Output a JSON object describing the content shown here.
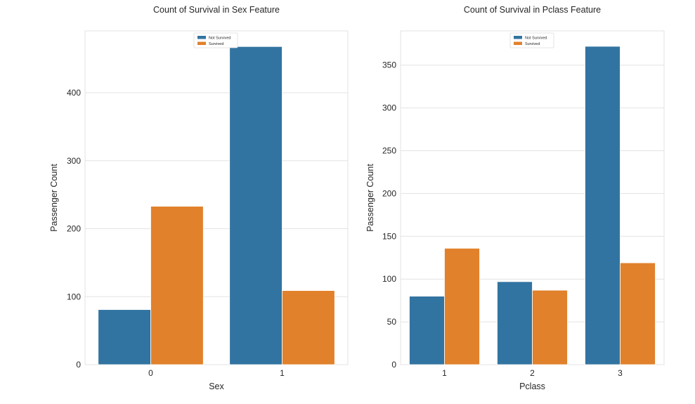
{
  "chart_data": [
    {
      "type": "bar",
      "title": "Count of Survival in Sex Feature",
      "xlabel": "Sex",
      "ylabel": "Passenger Count",
      "categories": [
        "0",
        "1"
      ],
      "series": [
        {
          "name": "Not Survived",
          "values": [
            81,
            468
          ]
        },
        {
          "name": "Survived",
          "values": [
            233,
            109
          ]
        }
      ],
      "yticks": [
        0,
        100,
        200,
        300,
        400
      ],
      "ylim": [
        0,
        491
      ],
      "grid": true,
      "legend_position": "top-center"
    },
    {
      "type": "bar",
      "title": "Count of Survival in Pclass Feature",
      "xlabel": "Pclass",
      "ylabel": "Passenger Count",
      "categories": [
        "1",
        "2",
        "3"
      ],
      "series": [
        {
          "name": "Not Survived",
          "values": [
            80,
            97,
            372
          ]
        },
        {
          "name": "Survived",
          "values": [
            136,
            87,
            119
          ]
        }
      ],
      "yticks": [
        0,
        50,
        100,
        150,
        200,
        250,
        300,
        350
      ],
      "ylim": [
        0,
        390
      ],
      "grid": true,
      "legend_position": "top-center"
    }
  ],
  "colors": {
    "Not Survived": "#3274a1",
    "Survived": "#e1812c"
  }
}
